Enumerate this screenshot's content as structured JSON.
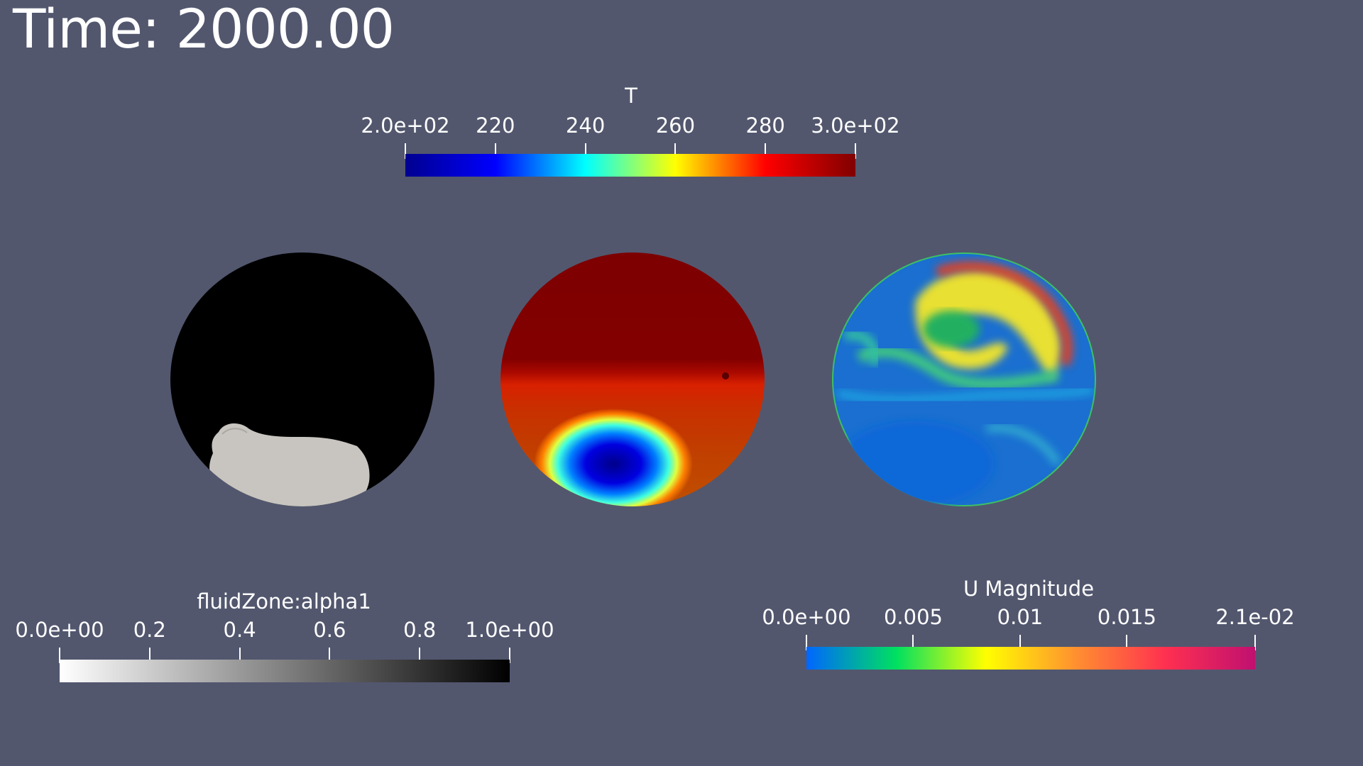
{
  "time_label": "Time: 2000.00",
  "colorbars": {
    "temperature": {
      "title": "T",
      "ticks": [
        "2.0e+02",
        "220",
        "240",
        "260",
        "280",
        "3.0e+02"
      ],
      "tick_values": [
        200,
        220,
        240,
        260,
        280,
        300
      ],
      "range": [
        200,
        300
      ],
      "colors": [
        "#00008f",
        "#0000ff",
        "#00ffff",
        "#ffff00",
        "#ff0000",
        "#800000"
      ]
    },
    "alpha": {
      "title": "fluidZone:alpha1",
      "ticks": [
        "0.0e+00",
        "0.2",
        "0.4",
        "0.6",
        "0.8",
        "1.0e+00"
      ],
      "tick_values": [
        0,
        0.2,
        0.4,
        0.6,
        0.8,
        1.0
      ],
      "range": [
        0,
        1
      ],
      "colors": [
        "#ffffff",
        "#000000"
      ]
    },
    "velocity": {
      "title": "U Magnitude",
      "ticks": [
        "0.0e+00",
        "0.005",
        "0.01",
        "0.015",
        "2.1e-02"
      ],
      "tick_values": [
        0,
        0.005,
        0.01,
        0.015,
        0.021
      ],
      "range": [
        0,
        0.021
      ],
      "colors": [
        "#0066ff",
        "#00e060",
        "#ffff00",
        "#ff9030",
        "#ff3050",
        "#c01070"
      ]
    }
  },
  "spheres": {
    "alpha": {
      "field": "fluidZone:alpha1"
    },
    "temperature": {
      "field": "T"
    },
    "velocity": {
      "field": "U Magnitude"
    }
  }
}
